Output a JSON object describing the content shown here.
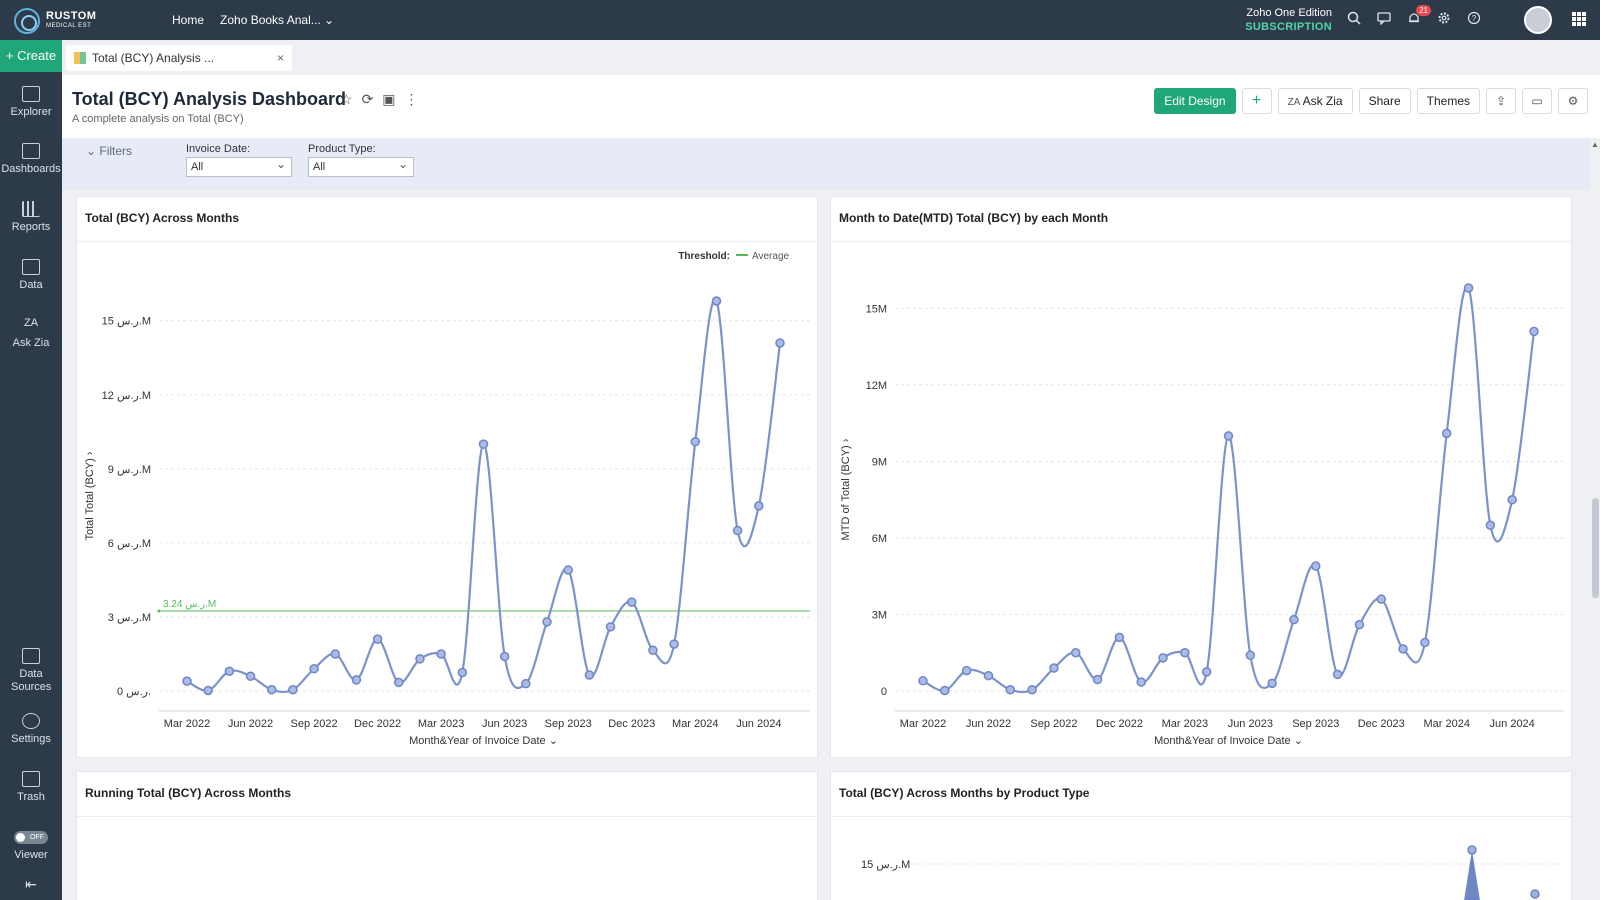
{
  "topbar": {
    "logo": {
      "name": "RUSTOM",
      "sub": "MEDICAL EST"
    },
    "nav": {
      "home": "Home",
      "workspace": "Zoho Books Anal..."
    },
    "edition": {
      "name": "Zoho One Edition",
      "subscription": "SUBSCRIPTION"
    },
    "notification_count": "21",
    "icons": [
      "search-icon",
      "chat-icon",
      "bell-icon",
      "gear-icon",
      "help-icon",
      "avatar",
      "apps-grid-icon"
    ]
  },
  "sidebar": {
    "create": "+ Create",
    "items": [
      {
        "label": "Explorer"
      },
      {
        "label": "Dashboards"
      },
      {
        "label": "Reports"
      },
      {
        "label": "Data"
      },
      {
        "label": "Ask Zia"
      },
      {
        "label": "Data Sources"
      },
      {
        "label": "Settings"
      },
      {
        "label": "Trash"
      },
      {
        "label": "Viewer"
      }
    ],
    "toggle_text": "OFF"
  },
  "tab": {
    "label": "Total (BCY) Analysis ...",
    "close": "×"
  },
  "header": {
    "title": "Total (BCY) Analysis Dashboard",
    "subtitle": "A complete analysis on Total (BCY)",
    "buttons": {
      "edit_design": "Edit Design",
      "add": "+",
      "ask_zia": "Ask Zia",
      "share": "Share",
      "themes": "Themes"
    }
  },
  "filters": {
    "toggle": "Filters",
    "invoice_date": {
      "label": "Invoice Date:",
      "value": "All"
    },
    "product_type": {
      "label": "Product Type:",
      "value": "All"
    }
  },
  "panels": {
    "p1_title": "Total (BCY) Across Months",
    "p2_title": "Month to Date(MTD) Total (BCY) by each Month",
    "p3_title": "Running Total (BCY) Across Months",
    "p4_title": "Total (BCY) Across Months by Product Type"
  },
  "chart_data": [
    {
      "type": "line",
      "title": "Total (BCY) Across Months",
      "xlabel": "Month&Year of Invoice Date",
      "ylabel": "Total Total (BCY)",
      "x_ticks": [
        "Mar 2022",
        "Jun 2022",
        "Sep 2022",
        "Dec 2022",
        "Mar 2023",
        "Jun 2023",
        "Sep 2023",
        "Dec 2023",
        "Mar 2024",
        "Jun 2024"
      ],
      "y_ticks": [
        "0 ر.س.",
        "3 ر.س.M",
        "6 ر.س.M",
        "9 ر.س.M",
        "12 ر.س.M",
        "15 ر.س.M"
      ],
      "ylim": [
        0,
        15.8
      ],
      "x": [
        "Mar 2022",
        "Apr 2022",
        "May 2022",
        "Jun 2022",
        "Jul 2022",
        "Aug 2022",
        "Sep 2022",
        "Oct 2022",
        "Nov 2022",
        "Dec 2022",
        "Jan 2023",
        "Feb 2023",
        "Mar 2023",
        "Apr 2023",
        "May 2023",
        "Jun 2023",
        "Jul 2023",
        "Aug 2023",
        "Sep 2023",
        "Oct 2023",
        "Nov 2023",
        "Dec 2023",
        "Jan 2024",
        "Feb 2024",
        "Mar 2024",
        "Apr 2024",
        "May 2024",
        "Jun 2024",
        "Jul 2024"
      ],
      "series": [
        {
          "values": [
            0.4,
            0.02,
            0.8,
            0.6,
            0.05,
            0.05,
            0.9,
            1.5,
            0.45,
            2.1,
            0.35,
            1.3,
            1.5,
            0.75,
            10.0,
            1.4,
            0.3,
            2.8,
            4.9,
            0.65,
            2.6,
            3.6,
            1.65,
            1.9,
            10.1,
            15.8,
            6.5,
            7.5,
            14.1
          ]
        }
      ],
      "threshold": {
        "label": "Threshold:",
        "name": "Average",
        "value": 3.24,
        "value_label": "3.24 ر.س.M"
      },
      "colors": {
        "line": "#7b93c9",
        "threshold": "#52b95a"
      }
    },
    {
      "type": "line",
      "title": "Month to Date(MTD) Total (BCY) by each Month",
      "xlabel": "Month&Year of Invoice Date",
      "ylabel": "MTD of Total (BCY)",
      "x_ticks": [
        "Mar 2022",
        "Jun 2022",
        "Sep 2022",
        "Dec 2022",
        "Mar 2023",
        "Jun 2023",
        "Sep 2023",
        "Dec 2023",
        "Mar 2024",
        "Jun 2024"
      ],
      "y_ticks": [
        "0",
        "3M",
        "6M",
        "9M",
        "12M",
        "15M"
      ],
      "ylim": [
        0,
        15.8
      ],
      "x": [
        "Mar 2022",
        "Apr 2022",
        "May 2022",
        "Jun 2022",
        "Jul 2022",
        "Aug 2022",
        "Sep 2022",
        "Oct 2022",
        "Nov 2022",
        "Dec 2022",
        "Jan 2023",
        "Feb 2023",
        "Mar 2023",
        "Apr 2023",
        "May 2023",
        "Jun 2023",
        "Jul 2023",
        "Aug 2023",
        "Sep 2023",
        "Oct 2023",
        "Nov 2023",
        "Dec 2023",
        "Jan 2024",
        "Feb 2024",
        "Mar 2024",
        "Apr 2024",
        "May 2024",
        "Jun 2024",
        "Jul 2024"
      ],
      "series": [
        {
          "values": [
            0.4,
            0.02,
            0.8,
            0.6,
            0.05,
            0.05,
            0.9,
            1.5,
            0.45,
            2.1,
            0.35,
            1.3,
            1.5,
            0.75,
            10.0,
            1.4,
            0.3,
            2.8,
            4.9,
            0.65,
            2.6,
            3.6,
            1.65,
            1.9,
            10.1,
            15.8,
            6.5,
            7.5,
            14.1
          ]
        }
      ],
      "colors": {
        "line": "#7b93c9"
      }
    }
  ],
  "partial_charts": {
    "p4_y_tick": "15 ر.س.M"
  }
}
